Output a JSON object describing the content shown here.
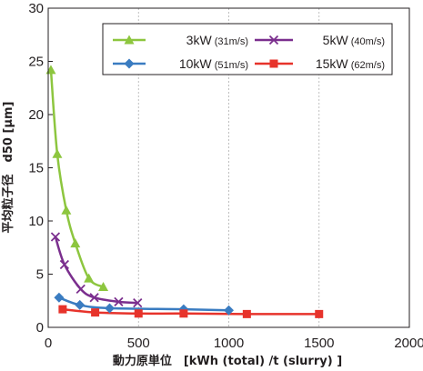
{
  "chart_data": {
    "type": "line",
    "xlabel": "動力原単位　[kWh (total) /t (slurry) ]",
    "ylabel": "平均粒子径　d50 [μm]",
    "xlim": [
      0,
      2000
    ],
    "ylim": [
      0,
      30
    ],
    "xticks": [
      0,
      500,
      1000,
      1500,
      2000
    ],
    "yticks": [
      0,
      5,
      10,
      15,
      20,
      25,
      30
    ],
    "grid": "vertical dashed",
    "legend_position": "top-right",
    "series": [
      {
        "name": "3kW",
        "speed": "(31m/s)",
        "color": "#8dc63f",
        "marker": "triangle",
        "x": [
          15,
          50,
          100,
          150,
          225,
          305
        ],
        "y": [
          24.2,
          16.3,
          11.0,
          7.9,
          4.6,
          3.8
        ]
      },
      {
        "name": "5kW",
        "speed": "(40m/s)",
        "color": "#7b2f8e",
        "marker": "x",
        "x": [
          40,
          90,
          180,
          255,
          390,
          495
        ],
        "y": [
          8.5,
          5.9,
          3.6,
          2.8,
          2.4,
          2.3
        ]
      },
      {
        "name": "10kW",
        "speed": "(51m/s)",
        "color": "#3a7cc1",
        "marker": "diamond",
        "x": [
          60,
          175,
          340,
          750,
          1000
        ],
        "y": [
          2.8,
          2.1,
          1.8,
          1.7,
          1.6
        ]
      },
      {
        "name": "15kW",
        "speed": "(62m/s)",
        "color": "#e7332b",
        "marker": "square",
        "x": [
          80,
          260,
          500,
          750,
          1100,
          1500
        ],
        "y": [
          1.7,
          1.4,
          1.3,
          1.3,
          1.25,
          1.25
        ]
      }
    ]
  }
}
